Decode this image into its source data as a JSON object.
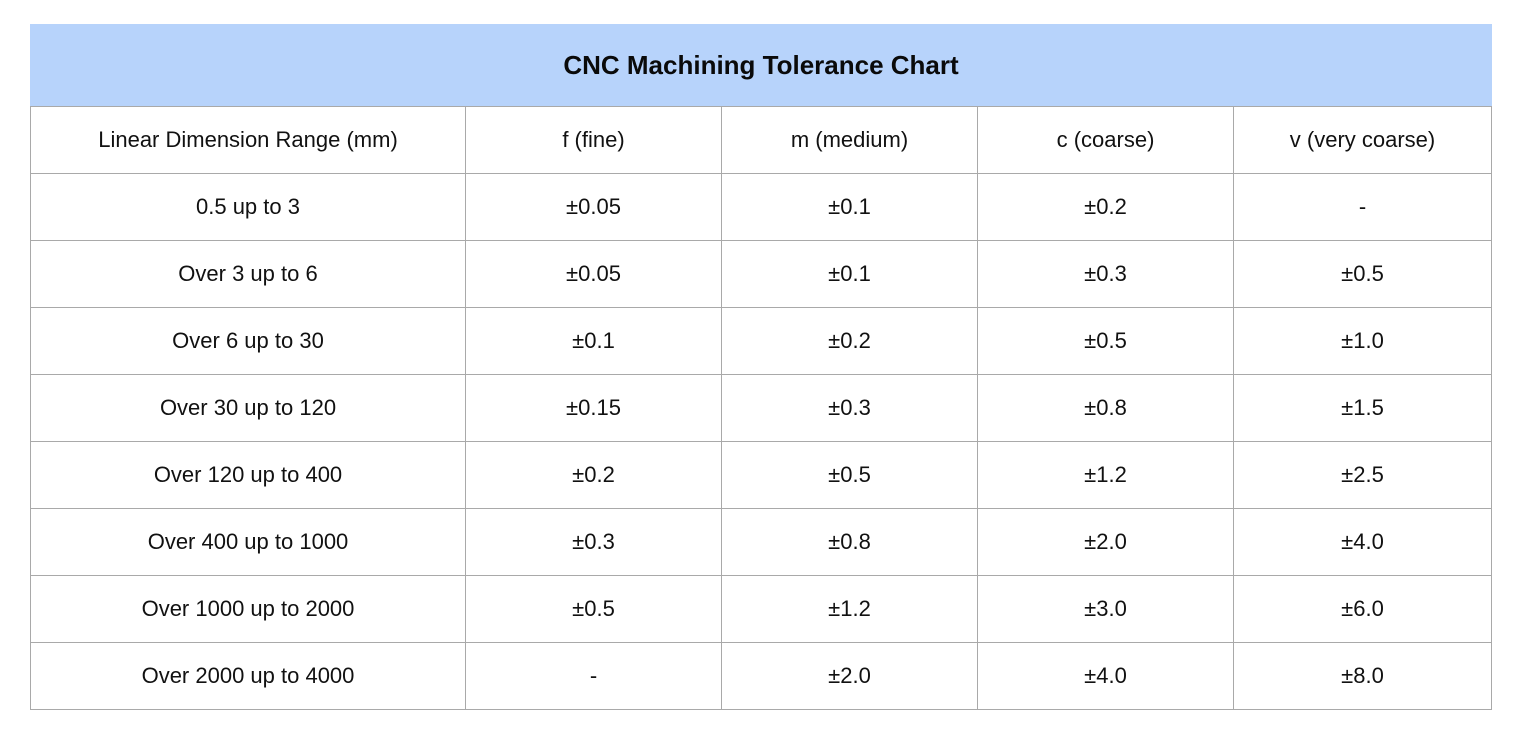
{
  "title": "CNC Machining Tolerance Chart",
  "headers": [
    "Linear Dimension Range (mm)",
    "f (fine)",
    "m (medium)",
    "c (coarse)",
    "v  (very coarse)"
  ],
  "rows": [
    [
      "0.5 up to 3",
      "±0.05",
      "±0.1",
      "±0.2",
      "-"
    ],
    [
      "Over 3 up to 6",
      "±0.05",
      "±0.1",
      "±0.3",
      "±0.5"
    ],
    [
      "Over 6 up to 30",
      "±0.1",
      "±0.2",
      "±0.5",
      "±1.0"
    ],
    [
      "Over 30 up to 120",
      "±0.15",
      "±0.3",
      "±0.8",
      "±1.5"
    ],
    [
      "Over 120 up to 400",
      "±0.2",
      "±0.5",
      "±1.2",
      "±2.5"
    ],
    [
      "Over 400 up to 1000",
      "±0.3",
      "±0.8",
      "±2.0",
      "±4.0"
    ],
    [
      "Over 1000 up to 2000",
      "±0.5",
      "±1.2",
      "±3.0",
      "±6.0"
    ],
    [
      "Over 2000 up to 4000",
      "-",
      "±2.0",
      "±4.0",
      "±8.0"
    ]
  ],
  "colors": {
    "title_background": "#b7d3fb",
    "border": "#a9a9a9"
  }
}
